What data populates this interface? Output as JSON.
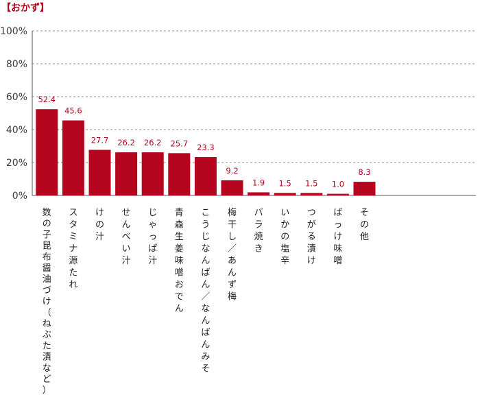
{
  "title": "【おかず】",
  "colors": {
    "bar": "#b5051f",
    "label": "#b5051f",
    "grid": "#8c8c8c",
    "axis": "#555555",
    "title": "#b5051f"
  },
  "chart_data": {
    "type": "bar",
    "title": "【おかず】",
    "xlabel": "",
    "ylabel": "",
    "ylim": [
      0,
      100
    ],
    "yticks": [
      0,
      20,
      40,
      60,
      80,
      100
    ],
    "ytick_labels": [
      "0%",
      "20%",
      "40%",
      "60%",
      "80%",
      "100%"
    ],
    "grid": true,
    "categories": [
      "数の子昆布醤油づけ（ねぶた漬など）",
      "スタミナ源たれ",
      "けの汁",
      "せんべい汁",
      "じゃっぱ汁",
      "青森生姜味噌おでん",
      "こうじなんばん／なんばんみそ",
      "梅干し／あんず梅",
      "バラ焼き",
      "いかの塩辛",
      "つがる漬け",
      "ばっけ味噌",
      "その他"
    ],
    "values": [
      52.4,
      45.6,
      27.7,
      26.2,
      26.2,
      25.7,
      23.3,
      9.2,
      1.9,
      1.5,
      1.5,
      1.0,
      8.3
    ],
    "value_labels": [
      "52.4",
      "45.6",
      "27.7",
      "26.2",
      "26.2",
      "25.7",
      "23.3",
      "9.2",
      "1.9",
      "1.5",
      "1.5",
      "1.0",
      "8.3"
    ]
  }
}
